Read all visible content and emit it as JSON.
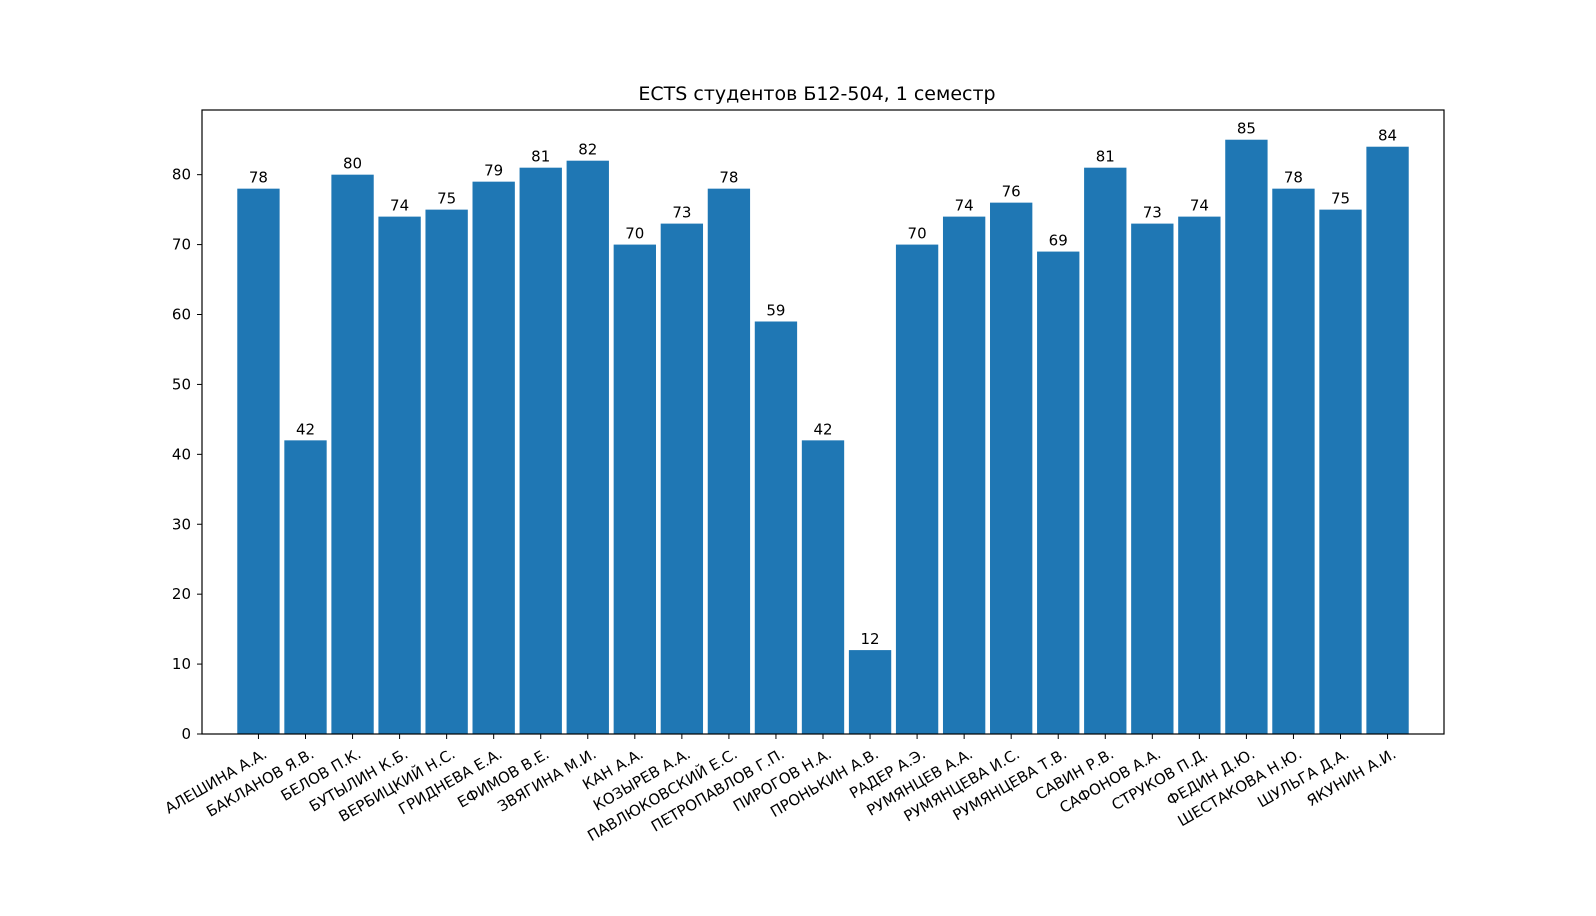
{
  "chart_data": {
    "type": "bar",
    "title": "ECTS студентов Б12-504, 1 семестр",
    "xlabel": "",
    "ylabel": "",
    "ylim": [
      0,
      89.25
    ],
    "yticks": [
      0,
      10,
      20,
      30,
      40,
      50,
      60,
      70,
      80
    ],
    "grid": false,
    "bar_color": "#1f77b4",
    "categories": [
      "АЛЕШИНА А.А.",
      "БАКЛАНОВ Я.В.",
      "БЕЛОВ П.К.",
      "БУТЫЛИН К.Б.",
      "ВЕРБИЦКИЙ Н.С.",
      "ГРИДНЕВА Е.А.",
      "ЕФИМОВ В.Е.",
      "ЗВЯГИНА М.И.",
      "КАН А.А.",
      "КОЗЫРЕВ А.А.",
      "ПАВЛЮКОВСКИЙ Е.С.",
      "ПЕТРОПАВЛОВ Г.П.",
      "ПИРОГОВ Н.А.",
      "ПРОНЬКИН А.В.",
      "РАДЕР А.Э.",
      "РУМЯНЦЕВ А.А.",
      "РУМЯНЦЕВА И.С.",
      "РУМЯНЦЕВА Т.В.",
      "САВИН Р.В.",
      "САФОНОВ А.А.",
      "СТРУКОВ П.Д.",
      "ФЕДИН Д.Ю.",
      "ШЕСТАКОВА Н.Ю.",
      "ШУЛЬГА Д.А.",
      "ЯКУНИН А.И."
    ],
    "values": [
      78,
      42,
      80,
      74,
      75,
      79,
      81,
      82,
      70,
      73,
      78,
      59,
      42,
      12,
      70,
      74,
      76,
      69,
      81,
      73,
      74,
      85,
      78,
      75,
      84
    ]
  }
}
